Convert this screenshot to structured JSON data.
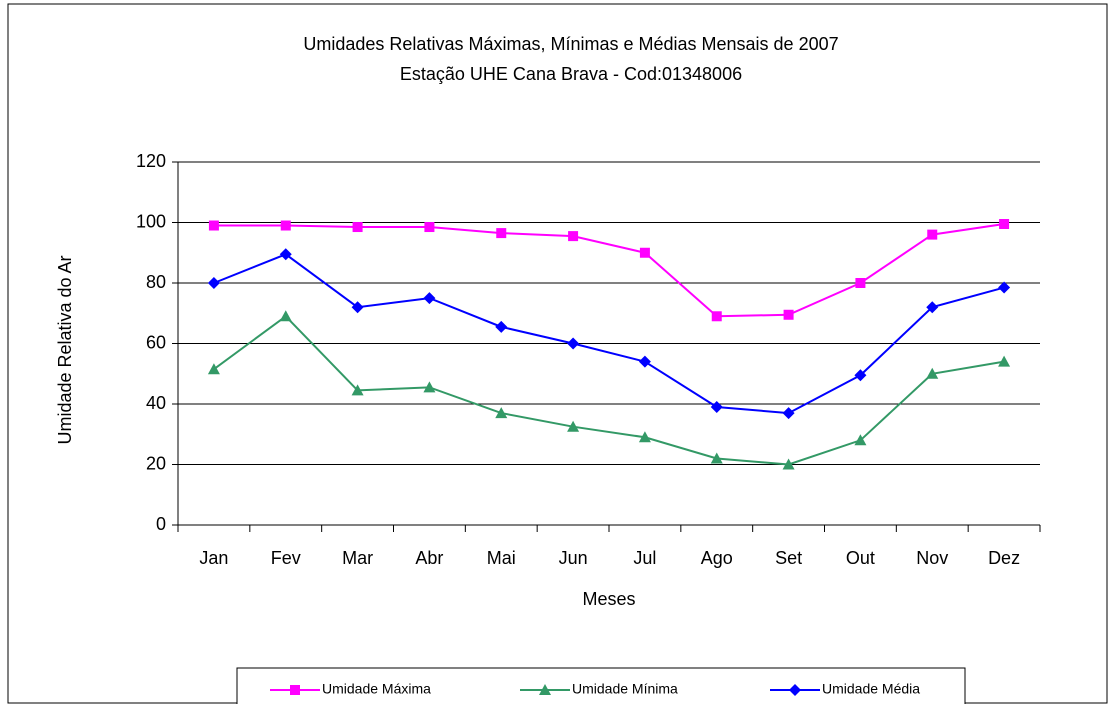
{
  "chart_data": {
    "type": "line",
    "title": "Umidades Relativas Máximas, Mínimas e Médias Mensais de 2007",
    "subtitle": "Estação UHE Cana Brava - Cod:01348006",
    "x_label": "Meses",
    "y_label": "Umidade Relativa do Ar",
    "categories": [
      "Jan",
      "Fev",
      "Mar",
      "Abr",
      "Mai",
      "Jun",
      "Jul",
      "Ago",
      "Set",
      "Out",
      "Nov",
      "Dez"
    ],
    "series": [
      {
        "name": "Umidade Máxima",
        "color": "#ff00ff",
        "marker": "square",
        "values": [
          99,
          99,
          98.5,
          98.5,
          96.5,
          95.5,
          90,
          69,
          69.5,
          80,
          96,
          99.5
        ]
      },
      {
        "name": "Umidade Mínima",
        "color": "#339966",
        "marker": "triangle",
        "values": [
          51.5,
          69,
          44.5,
          45.5,
          37,
          32.5,
          29,
          22,
          20,
          28,
          50,
          54
        ]
      },
      {
        "name": "Umidade Média",
        "color": "#0000ff",
        "marker": "diamond",
        "values": [
          80,
          89.5,
          72,
          75,
          65.5,
          60,
          54,
          39,
          37,
          49.5,
          72,
          78.5
        ]
      }
    ],
    "ylim": [
      0,
      120
    ],
    "yticks": [
      0,
      20,
      40,
      60,
      80,
      100,
      120
    ],
    "grid": true,
    "legend": "bottom"
  }
}
